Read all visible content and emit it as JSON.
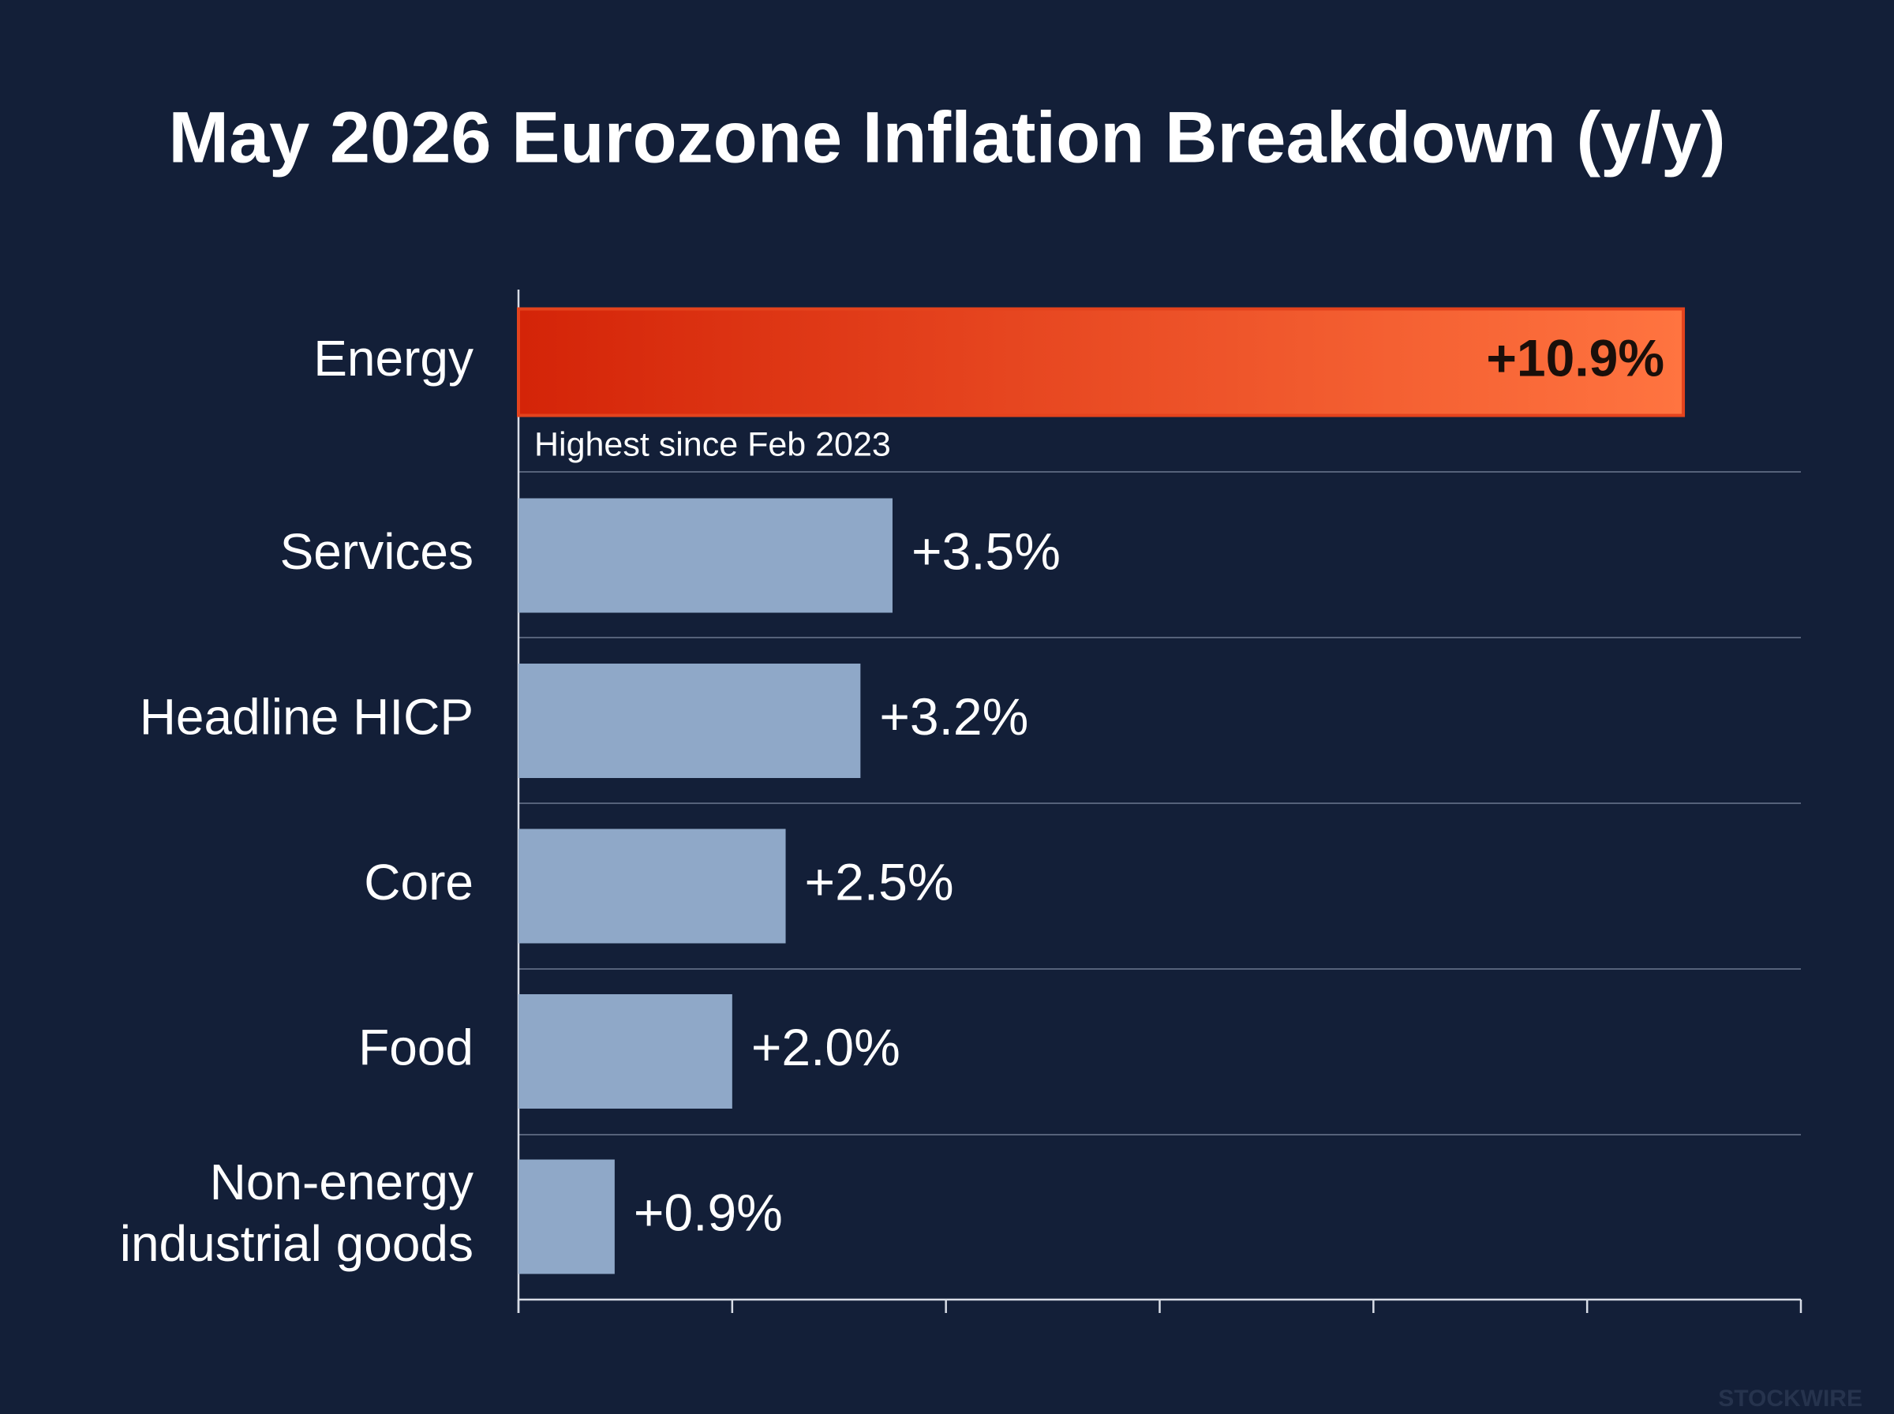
{
  "chart_data": {
    "type": "bar",
    "orientation": "horizontal",
    "title": "May 2026 Eurozone Inflation Breakdown (y/y)",
    "categories": [
      "Energy",
      "Services",
      "Headline HICP",
      "Core",
      "Food",
      "Non-energy\nindustrial goods"
    ],
    "values": [
      10.9,
      3.5,
      3.2,
      2.5,
      2.0,
      0.9
    ],
    "value_labels": [
      "+10.9%",
      "+3.5%",
      "+3.2%",
      "+2.5%",
      "+2.0%",
      "+0.9%"
    ],
    "colors": [
      "#e4431d",
      "#8fa8c8",
      "#8fa8c8",
      "#8fa8c8",
      "#8fa8c8",
      "#8fa8c8"
    ],
    "annotation": "Highest since Feb 2023",
    "watermark": "STOCKWIRE",
    "xlim": [
      0,
      12
    ],
    "xticks": [
      0,
      2,
      4,
      6,
      8,
      10,
      12
    ]
  }
}
